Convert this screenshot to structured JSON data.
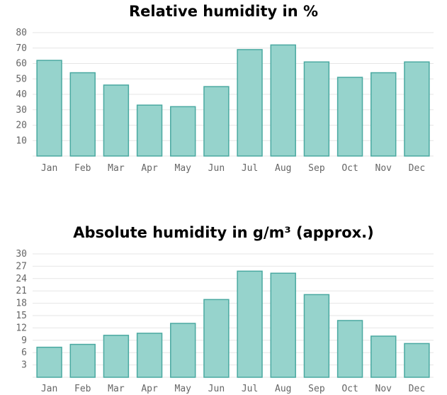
{
  "chart_data": [
    {
      "type": "bar",
      "title": "Relative humidity in %",
      "categories": [
        "Jan",
        "Feb",
        "Mar",
        "Apr",
        "May",
        "Jun",
        "Jul",
        "Aug",
        "Sep",
        "Oct",
        "Nov",
        "Dec"
      ],
      "values": [
        62,
        54,
        46,
        33,
        32,
        45,
        69,
        72,
        61,
        51,
        54,
        61
      ],
      "ylim": [
        0,
        80
      ],
      "yticks": [
        "10",
        "20",
        "30",
        "40",
        "50",
        "60",
        "70",
        "80"
      ],
      "grid": true,
      "bar_fill": "#96d3cc",
      "bar_stroke": "#4aa9a1"
    },
    {
      "type": "bar",
      "title": "Absolute humidity in g/m³ (approx.)",
      "categories": [
        "Jan",
        "Feb",
        "Mar",
        "Apr",
        "May",
        "Jun",
        "Jul",
        "Aug",
        "Sep",
        "Oct",
        "Nov",
        "Dec"
      ],
      "values": [
        7.3,
        8.0,
        10.2,
        10.7,
        13.1,
        18.9,
        25.8,
        25.3,
        20.1,
        13.8,
        10.0,
        8.2
      ],
      "ylim": [
        0,
        30
      ],
      "yticks": [
        "3",
        "6",
        "9",
        "12",
        "15",
        "18",
        "21",
        "24",
        "27",
        "30"
      ],
      "grid": true,
      "bar_fill": "#96d3cc",
      "bar_stroke": "#4aa9a1"
    }
  ]
}
